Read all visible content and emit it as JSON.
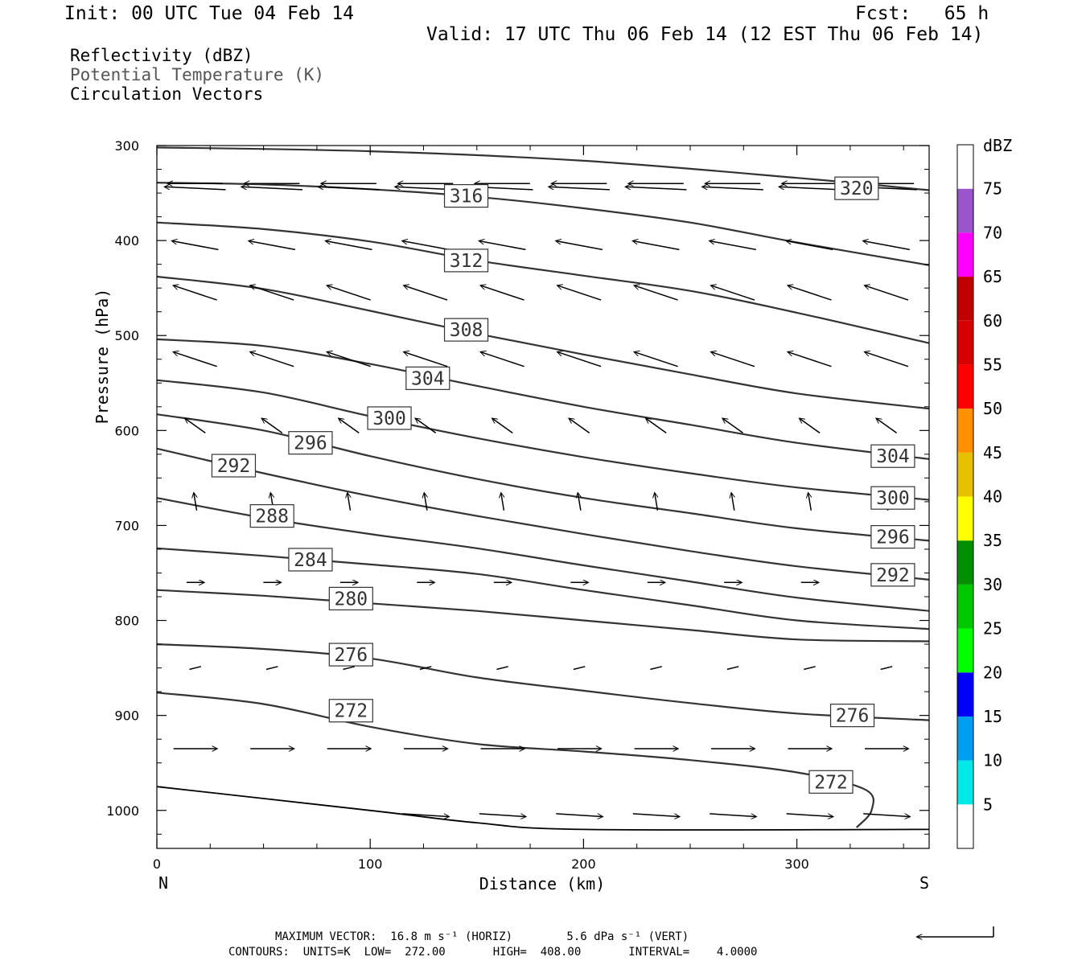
{
  "header": {
    "init": "Init: 00 UTC Tue 04 Feb 14",
    "fcst": "Fcst:   65 h",
    "valid": "Valid: 17 UTC Thu 06 Feb 14 (12 EST Thu 06 Feb 14)",
    "field1": "Reflectivity (dBZ)",
    "field2": "Potential Temperature (K)",
    "field3": "Circulation Vectors"
  },
  "footer": {
    "maxvec": "MAXIMUM VECTOR:  16.8 m s⁻¹ (HORIZ)        5.6 dPa s⁻¹ (VERT)",
    "contours": "CONTOURS:  UNITS=K  LOW=  272.00       HIGH=  408.00       INTERVAL=    4.0000"
  },
  "colors": {
    "contour": "#333333",
    "vector": "#000000"
  },
  "chart_data": {
    "type": "line",
    "xlabel": "Distance (km)",
    "ylabel": "Pressure (hPa)",
    "xlim": [
      0,
      362
    ],
    "ylim": [
      1040,
      300
    ],
    "xticks": [
      0,
      100,
      200,
      300
    ],
    "yticks": [
      300,
      400,
      500,
      600,
      700,
      800,
      900,
      1000
    ],
    "x_end_labels": {
      "left": "N",
      "right": "S"
    },
    "surface_pressure": [
      [
        0,
        975
      ],
      [
        100,
        1000
      ],
      [
        150,
        1013
      ],
      [
        200,
        1020
      ],
      [
        362,
        1020
      ]
    ],
    "contours": [
      {
        "value": 320,
        "pts": [
          [
            0,
            302
          ],
          [
            100,
            306
          ],
          [
            200,
            316
          ],
          [
            300,
            334
          ],
          [
            362,
            347
          ]
        ]
      },
      {
        "value": 316,
        "pts": [
          [
            0,
            339
          ],
          [
            50,
            341
          ],
          [
            100,
            346
          ],
          [
            150,
            354
          ],
          [
            200,
            366
          ],
          [
            250,
            381
          ],
          [
            300,
            402
          ],
          [
            362,
            426
          ]
        ]
      },
      {
        "value": 312,
        "pts": [
          [
            0,
            381
          ],
          [
            50,
            388
          ],
          [
            100,
            401
          ],
          [
            150,
            421
          ],
          [
            200,
            437
          ],
          [
            250,
            453
          ],
          [
            300,
            476
          ],
          [
            362,
            508
          ]
        ]
      },
      {
        "value": 308,
        "pts": [
          [
            0,
            438
          ],
          [
            50,
            451
          ],
          [
            100,
            474
          ],
          [
            150,
            498
          ],
          [
            200,
            520
          ],
          [
            250,
            541
          ],
          [
            300,
            561
          ],
          [
            362,
            577
          ]
        ]
      },
      {
        "value": 304,
        "pts": [
          [
            0,
            504
          ],
          [
            50,
            511
          ],
          [
            100,
            530
          ],
          [
            150,
            553
          ],
          [
            200,
            575
          ],
          [
            250,
            594
          ],
          [
            300,
            613
          ],
          [
            362,
            630
          ]
        ]
      },
      {
        "value": 300,
        "pts": [
          [
            0,
            547
          ],
          [
            50,
            560
          ],
          [
            100,
            585
          ],
          [
            150,
            608
          ],
          [
            200,
            628
          ],
          [
            250,
            645
          ],
          [
            300,
            660
          ],
          [
            362,
            673
          ]
        ]
      },
      {
        "value": 296,
        "pts": [
          [
            0,
            583
          ],
          [
            50,
            600
          ],
          [
            100,
            627
          ],
          [
            150,
            651
          ],
          [
            200,
            671
          ],
          [
            250,
            687
          ],
          [
            300,
            703
          ],
          [
            362,
            716
          ]
        ]
      },
      {
        "value": 292,
        "pts": [
          [
            0,
            619
          ],
          [
            50,
            645
          ],
          [
            100,
            669
          ],
          [
            150,
            690
          ],
          [
            200,
            709
          ],
          [
            250,
            727
          ],
          [
            300,
            743
          ],
          [
            362,
            757
          ]
        ]
      },
      {
        "value": 288,
        "pts": [
          [
            0,
            671
          ],
          [
            50,
            692
          ],
          [
            100,
            709
          ],
          [
            150,
            724
          ],
          [
            200,
            742
          ],
          [
            250,
            759
          ],
          [
            300,
            776
          ],
          [
            362,
            790
          ]
        ]
      },
      {
        "value": 284,
        "pts": [
          [
            0,
            724
          ],
          [
            50,
            732
          ],
          [
            100,
            741
          ],
          [
            150,
            751
          ],
          [
            200,
            768
          ],
          [
            250,
            784
          ],
          [
            300,
            800
          ],
          [
            362,
            809
          ]
        ]
      },
      {
        "value": 280,
        "pts": [
          [
            0,
            768
          ],
          [
            50,
            774
          ],
          [
            100,
            782
          ],
          [
            150,
            790
          ],
          [
            200,
            800
          ],
          [
            250,
            810
          ],
          [
            300,
            820
          ],
          [
            362,
            822
          ]
        ]
      },
      {
        "value": 276,
        "pts": [
          [
            0,
            825
          ],
          [
            50,
            830
          ],
          [
            100,
            840
          ],
          [
            150,
            860
          ],
          [
            200,
            874
          ],
          [
            250,
            887
          ],
          [
            300,
            898
          ],
          [
            362,
            905
          ]
        ]
      },
      {
        "value": 272,
        "pts": [
          [
            0,
            876
          ],
          [
            50,
            888
          ],
          [
            100,
            912
          ],
          [
            150,
            930
          ],
          [
            200,
            938
          ],
          [
            250,
            947
          ],
          [
            300,
            960
          ],
          [
            332,
            978
          ],
          [
            335,
            1000
          ],
          [
            328,
            1018
          ]
        ]
      }
    ],
    "contour_labels": [
      {
        "text": "320",
        "x": 328,
        "p": 345
      },
      {
        "text": "316",
        "x": 145,
        "p": 353
      },
      {
        "text": "312",
        "x": 145,
        "p": 421
      },
      {
        "text": "308",
        "x": 145,
        "p": 494
      },
      {
        "text": "304",
        "x": 127,
        "p": 545
      },
      {
        "text": "300",
        "x": 109,
        "p": 587
      },
      {
        "text": "296",
        "x": 72,
        "p": 613
      },
      {
        "text": "292",
        "x": 36,
        "p": 637
      },
      {
        "text": "288",
        "x": 54,
        "p": 690
      },
      {
        "text": "284",
        "x": 72,
        "p": 736
      },
      {
        "text": "280",
        "x": 91,
        "p": 777
      },
      {
        "text": "276",
        "x": 91,
        "p": 836
      },
      {
        "text": "272",
        "x": 91,
        "p": 895
      },
      {
        "text": "304",
        "x": 345,
        "p": 627
      },
      {
        "text": "300",
        "x": 345,
        "p": 671
      },
      {
        "text": "296",
        "x": 345,
        "p": 712
      },
      {
        "text": "292",
        "x": 345,
        "p": 752
      },
      {
        "text": "276",
        "x": 326,
        "p": 900
      },
      {
        "text": "272",
        "x": 316,
        "p": 970
      }
    ],
    "vectors": [
      {
        "p": 340,
        "u": -1.9,
        "w": 0.0
      },
      {
        "p": 345,
        "u": -2.1,
        "w": 0.1
      },
      {
        "p": 405,
        "u": -1.6,
        "w": 0.3
      },
      {
        "p": 455,
        "u": -1.5,
        "w": 0.5
      },
      {
        "p": 525,
        "u": -1.5,
        "w": 0.5
      },
      {
        "p": 595,
        "u": -0.7,
        "w": 0.5
      },
      {
        "p": 675,
        "u": -0.1,
        "w": 0.6
      },
      {
        "p": 760,
        "u": 0.6,
        "w": 0.0
      },
      {
        "p": 850,
        "u": 0.4,
        "w": 0.1
      },
      {
        "p": 935,
        "u": 1.5,
        "w": 0.0
      },
      {
        "p": 1005,
        "u": 1.6,
        "w": -0.1
      }
    ],
    "vector_x": [
      18,
      54,
      90,
      126,
      162,
      198,
      234,
      270,
      306,
      342
    ],
    "colorbar": {
      "title": "dBZ",
      "levels": [
        5,
        10,
        15,
        20,
        25,
        30,
        35,
        40,
        45,
        50,
        55,
        60,
        65,
        70,
        75
      ],
      "colors": [
        "#ffffff",
        "#00e8e8",
        "#009ef0",
        "#0000f6",
        "#00ff00",
        "#00c800",
        "#008f00",
        "#ffff00",
        "#e7c000",
        "#ff9000",
        "#ff0000",
        "#d70000",
        "#c00000",
        "#ff00ff",
        "#9955c9",
        "#ffffff"
      ]
    }
  }
}
